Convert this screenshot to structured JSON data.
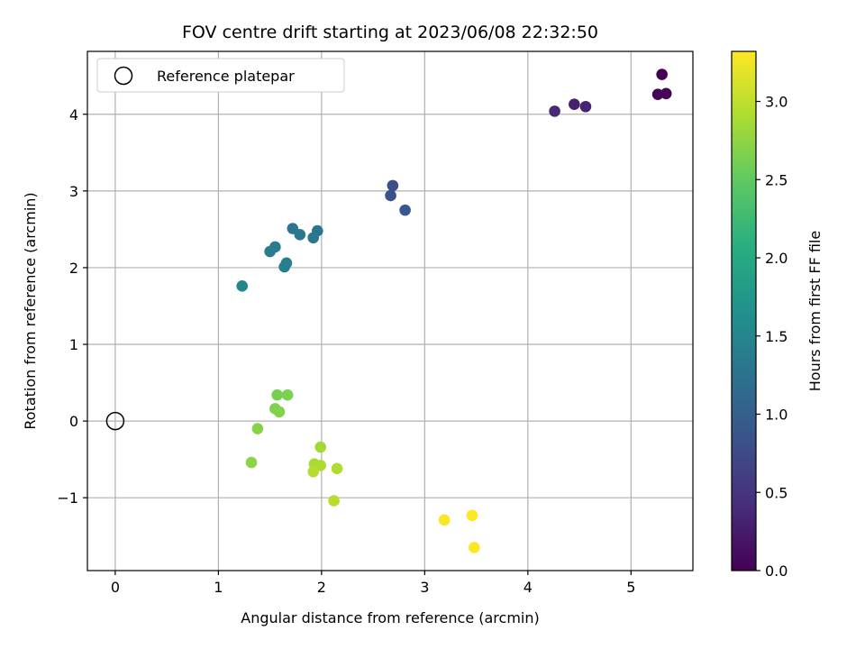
{
  "chart_data": {
    "type": "scatter",
    "title": "FOV centre drift starting at 2023/06/08 22:32:50",
    "xlabel": "Angular distance from reference (arcmin)",
    "ylabel": "Rotation from reference (arcmin)",
    "xlim": [
      -0.27,
      5.6
    ],
    "ylim": [
      -1.95,
      4.82
    ],
    "xticks": [
      0,
      1,
      2,
      3,
      4,
      5
    ],
    "yticks": [
      -1,
      0,
      1,
      2,
      3,
      4
    ],
    "xtick_labels": [
      "0",
      "1",
      "2",
      "3",
      "4",
      "5"
    ],
    "ytick_labels": [
      "−1",
      "0",
      "1",
      "2",
      "3",
      "4"
    ],
    "grid": true,
    "legend": {
      "placement": "top-left",
      "entries": [
        "Reference platepar"
      ]
    },
    "reference_point": {
      "x": 0,
      "y": 0,
      "label": "Reference platepar",
      "marker": "open-circle"
    },
    "colorbar": {
      "label": "Hours from first FF file",
      "colormap": "viridis",
      "range": [
        0,
        3.32
      ],
      "ticks": [
        0.0,
        0.5,
        1.0,
        1.5,
        2.0,
        2.5,
        3.0
      ],
      "tick_labels": [
        "0.0",
        "0.5",
        "1.0",
        "1.5",
        "2.0",
        "2.5",
        "3.0"
      ]
    },
    "points": [
      {
        "x": 5.3,
        "y": 4.52,
        "hours": 0.0
      },
      {
        "x": 5.26,
        "y": 4.26,
        "hours": 0.04
      },
      {
        "x": 5.34,
        "y": 4.27,
        "hours": 0.06
      },
      {
        "x": 4.45,
        "y": 4.13,
        "hours": 0.3
      },
      {
        "x": 4.56,
        "y": 4.1,
        "hours": 0.33
      },
      {
        "x": 4.26,
        "y": 4.04,
        "hours": 0.38
      },
      {
        "x": 2.69,
        "y": 3.07,
        "hours": 0.8
      },
      {
        "x": 2.67,
        "y": 2.94,
        "hours": 0.85
      },
      {
        "x": 2.81,
        "y": 2.75,
        "hours": 0.9
      },
      {
        "x": 1.72,
        "y": 2.51,
        "hours": 1.28
      },
      {
        "x": 1.96,
        "y": 2.48,
        "hours": 1.3
      },
      {
        "x": 1.79,
        "y": 2.43,
        "hours": 1.32
      },
      {
        "x": 1.92,
        "y": 2.39,
        "hours": 1.34
      },
      {
        "x": 1.55,
        "y": 2.27,
        "hours": 1.36
      },
      {
        "x": 1.5,
        "y": 2.21,
        "hours": 1.38
      },
      {
        "x": 1.66,
        "y": 2.06,
        "hours": 1.4
      },
      {
        "x": 1.64,
        "y": 2.01,
        "hours": 1.42
      },
      {
        "x": 1.23,
        "y": 1.76,
        "hours": 1.5
      },
      {
        "x": 1.57,
        "y": 0.34,
        "hours": 2.62
      },
      {
        "x": 1.67,
        "y": 0.34,
        "hours": 2.64
      },
      {
        "x": 1.55,
        "y": 0.16,
        "hours": 2.66
      },
      {
        "x": 1.59,
        "y": 0.12,
        "hours": 2.68
      },
      {
        "x": 1.38,
        "y": -0.1,
        "hours": 2.7
      },
      {
        "x": 1.99,
        "y": -0.34,
        "hours": 2.85
      },
      {
        "x": 1.32,
        "y": -0.54,
        "hours": 2.72
      },
      {
        "x": 1.93,
        "y": -0.56,
        "hours": 2.88
      },
      {
        "x": 1.99,
        "y": -0.58,
        "hours": 2.9
      },
      {
        "x": 2.15,
        "y": -0.62,
        "hours": 2.92
      },
      {
        "x": 1.92,
        "y": -0.66,
        "hours": 2.94
      },
      {
        "x": 2.12,
        "y": -1.04,
        "hours": 2.96
      },
      {
        "x": 3.19,
        "y": -1.29,
        "hours": 3.3
      },
      {
        "x": 3.46,
        "y": -1.23,
        "hours": 3.31
      },
      {
        "x": 3.48,
        "y": -1.65,
        "hours": 3.32
      }
    ]
  }
}
